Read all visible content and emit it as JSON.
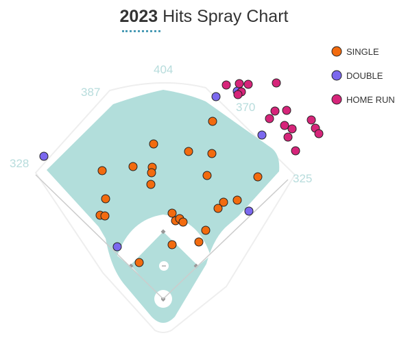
{
  "title": {
    "year": "2023",
    "rest": "Hits Spray Chart"
  },
  "colors": {
    "grass": "#b2dedb",
    "infield": "#ffffff",
    "single": "#f26b0f",
    "double": "#7b68ee",
    "home_run": "#d6257a"
  },
  "chart_data": {
    "type": "scatter",
    "title": "2023 Hits Spray Chart",
    "fence_distances": [
      {
        "label": "328"
      },
      {
        "label": "387"
      },
      {
        "label": "404"
      },
      {
        "label": "370"
      },
      {
        "label": "325"
      }
    ],
    "legend": {
      "placement": "top-right",
      "entries": [
        "SINGLE",
        "DOUBLE",
        "HOME RUN"
      ]
    },
    "series": [
      {
        "name": "SINGLE",
        "color": "#f26b0f",
        "points": [
          [
            310,
            177
          ],
          [
            224,
            210
          ],
          [
            275,
            221
          ],
          [
            309,
            224
          ],
          [
            149,
            249
          ],
          [
            194,
            243
          ],
          [
            222,
            244
          ],
          [
            221,
            252
          ],
          [
            302,
            256
          ],
          [
            376,
            258
          ],
          [
            220,
            269
          ],
          [
            154,
            290
          ],
          [
            326,
            295
          ],
          [
            346,
            292
          ],
          [
            318,
            304
          ],
          [
            146,
            314
          ],
          [
            153,
            315
          ],
          [
            251,
            311
          ],
          [
            256,
            322
          ],
          [
            262,
            319
          ],
          [
            267,
            324
          ],
          [
            300,
            336
          ],
          [
            290,
            353
          ],
          [
            251,
            357
          ],
          [
            203,
            383
          ]
        ]
      },
      {
        "name": "DOUBLE",
        "color": "#7b68ee",
        "points": [
          [
            64,
            228
          ],
          [
            315,
            141
          ],
          [
            346,
            133
          ],
          [
            382,
            197
          ],
          [
            363,
            308
          ],
          [
            171,
            360
          ]
        ]
      },
      {
        "name": "HOME RUN",
        "color": "#d6257a",
        "points": [
          [
            330,
            124
          ],
          [
            349,
            122
          ],
          [
            362,
            123
          ],
          [
            403,
            121
          ],
          [
            352,
            134
          ],
          [
            347,
            138
          ],
          [
            401,
            162
          ],
          [
            418,
            161
          ],
          [
            393,
            173
          ],
          [
            454,
            175
          ],
          [
            415,
            183
          ],
          [
            426,
            188
          ],
          [
            460,
            187
          ],
          [
            465,
            195
          ],
          [
            420,
            200
          ],
          [
            431,
            220
          ]
        ]
      }
    ]
  }
}
